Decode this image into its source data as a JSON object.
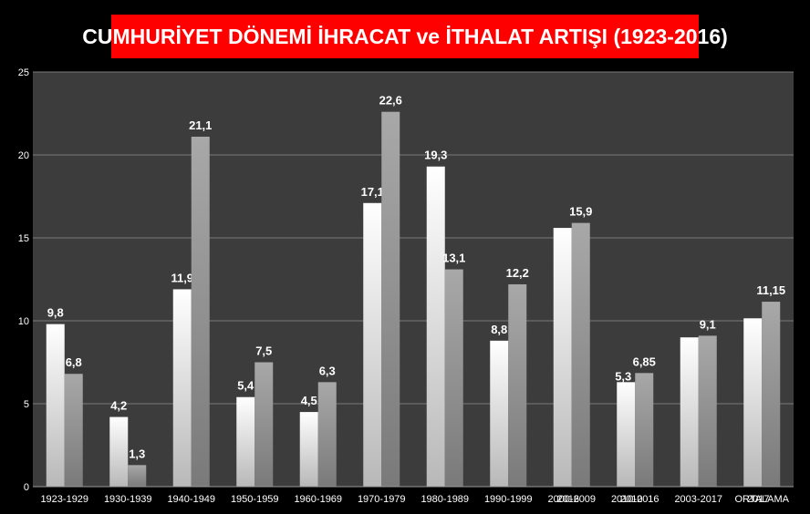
{
  "chart_data": {
    "type": "bar",
    "title": "CUMHURİYET DÖNEMİ İHRACAT ve İTHALAT ARTIŞI (1923-2016)",
    "categories": [
      "1923-1929",
      "1930-1939",
      "1940-1949",
      "1950-1959",
      "1960-1969",
      "1970-1979",
      "1980-1989",
      "1990-1999",
      "2000-2009",
      "2010-2016",
      "2003-2017",
      "ORTALAMA"
    ],
    "category_overlays": [
      [
        "",
        ""
      ],
      [
        "",
        ""
      ],
      [
        "",
        ""
      ],
      [
        "",
        ""
      ],
      [
        "",
        ""
      ],
      [
        "",
        ""
      ],
      [
        "",
        ""
      ],
      [
        "",
        ""
      ],
      [
        "2016",
        ""
      ],
      [
        "2010",
        ""
      ],
      [
        "",
        ""
      ],
      [
        "2017",
        ""
      ]
    ],
    "series": [
      {
        "values": [
          9.8,
          4.2,
          11.9,
          5.4,
          4.5,
          17.1,
          19.3,
          8.8,
          15.6,
          6.3,
          9.0,
          10.15
        ],
        "labels": [
          "9,8",
          "4,2",
          "11,9",
          "5,4",
          "4,5",
          "17,1",
          "19,3",
          "8,8",
          "",
          "",
          "",
          ""
        ]
      },
      {
        "values": [
          6.8,
          1.3,
          21.1,
          7.5,
          6.3,
          22.6,
          13.1,
          12.2,
          15.9,
          6.85,
          9.1,
          11.15
        ],
        "labels": [
          "6,8",
          "1,3",
          "21,1",
          "7,5",
          "6,3",
          "22,6",
          "13,1",
          "12,2",
          "15,9",
          "6,85",
          "9,1",
          "11,15"
        ]
      }
    ],
    "overlap_labels": [
      "",
      "",
      "",
      "",
      "",
      "",
      "",
      "",
      "",
      "5,3",
      "",
      ""
    ],
    "yticks": [
      "0",
      "5",
      "10",
      "15",
      "20",
      "25"
    ],
    "ylim": [
      0,
      25
    ],
    "grid": true,
    "colors": {
      "plot_bg": "#3c3c3c",
      "grid": "#7a7a7a",
      "title_bg": "#ff0000"
    }
  }
}
